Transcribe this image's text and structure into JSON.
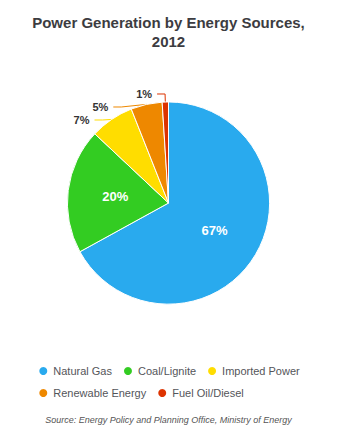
{
  "chart_data": {
    "type": "pie",
    "title": "Power Generation by Energy Sources,\n2012",
    "categories": [
      "Natural Gas",
      "Coal/Lignite",
      "Imported Power",
      "Renewable Energy",
      "Fuel Oil/Diesel"
    ],
    "values": [
      67,
      20,
      7,
      5,
      1
    ],
    "value_labels": [
      "67%",
      "20%",
      "7%",
      "5%",
      "1%"
    ],
    "colors": [
      "#29aaee",
      "#33cc22",
      "#ffdd00",
      "#ee8800",
      "#dd3300"
    ],
    "data_labels": true,
    "legend": "bottom",
    "annotation": "Source: Energy Policy and Planning Office, Ministry of Energy"
  }
}
